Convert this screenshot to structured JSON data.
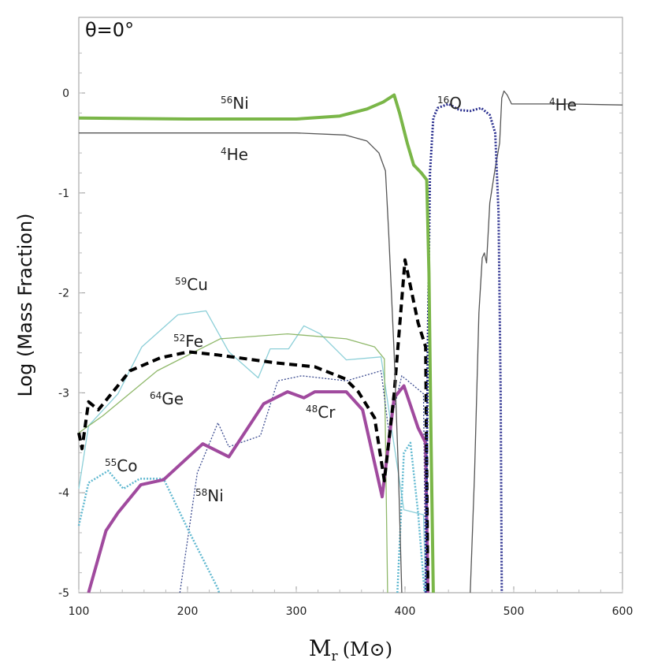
{
  "chart_data": {
    "type": "line",
    "title": "θ=0°",
    "xlabel": "M_r (M_⊙)",
    "xlabel_main": "M",
    "xlabel_sub": "r",
    "xlabel_unit": "(M⊙)",
    "ylabel": "Log (Mass Fraction)",
    "xlim": [
      100,
      600
    ],
    "ylim": [
      -5,
      0.5
    ],
    "xticks": [
      100,
      200,
      300,
      400,
      500,
      600
    ],
    "yticks": [
      0,
      -1,
      -2,
      -3,
      -4,
      -5
    ],
    "grid": false,
    "series": [
      {
        "name": "56Ni",
        "mass": "56",
        "el": "Ni",
        "color": "#7ab648",
        "width": 4,
        "dash": "",
        "points": [
          [
            100,
            -0.25
          ],
          [
            200,
            -0.26
          ],
          [
            300,
            -0.26
          ],
          [
            340,
            -0.23
          ],
          [
            365,
            -0.16
          ],
          [
            380,
            -0.09
          ],
          [
            390,
            -0.02
          ],
          [
            395,
            -0.2
          ],
          [
            402,
            -0.5
          ],
          [
            408,
            -0.72
          ],
          [
            415,
            -0.8
          ],
          [
            420,
            -0.87
          ],
          [
            422,
            -1.8
          ],
          [
            424,
            -3.5
          ],
          [
            426,
            -5
          ]
        ]
      },
      {
        "name": "4He",
        "mass": "4",
        "el": "He",
        "color": "#555555",
        "width": 1.3,
        "dash": "",
        "points": [
          [
            100,
            -0.4
          ],
          [
            300,
            -0.4
          ],
          [
            345,
            -0.42
          ],
          [
            365,
            -0.48
          ],
          [
            376,
            -0.6
          ],
          [
            382,
            -0.78
          ],
          [
            385,
            -1.4
          ],
          [
            390,
            -2.6
          ],
          [
            394,
            -3.8
          ],
          [
            397,
            -5
          ],
          null,
          [
            460,
            -5
          ],
          [
            464,
            -3.8
          ],
          [
            468,
            -2.2
          ],
          [
            471,
            -1.65
          ],
          [
            473,
            -1.6
          ],
          [
            475,
            -1.7
          ],
          [
            478,
            -1.1
          ],
          [
            483,
            -0.75
          ],
          [
            487,
            -0.5
          ],
          [
            489,
            -0.05
          ],
          [
            491,
            0.02
          ],
          [
            494,
            -0.02
          ],
          [
            498,
            -0.11
          ],
          [
            550,
            -0.11
          ],
          [
            600,
            -0.12
          ]
        ]
      },
      {
        "name": "16O",
        "mass": "16",
        "el": "O",
        "color": "#2a2f8f",
        "width": 3,
        "dash": "2,2",
        "points": [
          [
            419,
            -5
          ],
          [
            421,
            -2.5
          ],
          [
            423,
            -0.8
          ],
          [
            426,
            -0.25
          ],
          [
            430,
            -0.15
          ],
          [
            440,
            -0.11
          ],
          [
            450,
            -0.17
          ],
          [
            460,
            -0.18
          ],
          [
            470,
            -0.15
          ],
          [
            478,
            -0.22
          ],
          [
            483,
            -0.4
          ],
          [
            486,
            -1.2
          ],
          [
            488,
            -3
          ],
          [
            489,
            -5
          ]
        ]
      },
      {
        "name": "52Fe",
        "mass": "52",
        "el": "Fe",
        "color": "#000000",
        "width": 4,
        "dash": "10,6",
        "points": [
          [
            100,
            -3.4
          ],
          [
            103,
            -3.56
          ],
          [
            109,
            -3.09
          ],
          [
            118,
            -3.17
          ],
          [
            147,
            -2.78
          ],
          [
            175,
            -2.65
          ],
          [
            201,
            -2.59
          ],
          [
            227,
            -2.62
          ],
          [
            281,
            -2.7
          ],
          [
            317,
            -2.74
          ],
          [
            345,
            -2.86
          ],
          [
            357,
            -2.99
          ],
          [
            372,
            -3.25
          ],
          [
            381,
            -3.88
          ],
          [
            390,
            -3.01
          ],
          [
            400,
            -1.67
          ],
          [
            412,
            -2.3
          ],
          [
            419,
            -2.54
          ],
          [
            421,
            -5
          ]
        ]
      },
      {
        "name": "48Cr",
        "mass": "48",
        "el": "Cr",
        "color": "#a04a9e",
        "width": 4,
        "dash": "",
        "points": [
          [
            109,
            -5
          ],
          [
            125,
            -4.38
          ],
          [
            136,
            -4.2
          ],
          [
            157,
            -3.92
          ],
          [
            178,
            -3.87
          ],
          [
            214,
            -3.51
          ],
          [
            238,
            -3.64
          ],
          [
            270,
            -3.11
          ],
          [
            292,
            -2.99
          ],
          [
            307,
            -3.05
          ],
          [
            317,
            -2.99
          ],
          [
            346,
            -2.99
          ],
          [
            361,
            -3.17
          ],
          [
            379,
            -4.04
          ],
          [
            390,
            -3.05
          ],
          [
            399,
            -2.93
          ],
          [
            412,
            -3.35
          ],
          [
            419,
            -3.5
          ],
          [
            421,
            -5
          ]
        ]
      },
      {
        "name": "64Ge",
        "mass": "64",
        "el": "Ge",
        "color": "#8fb86a",
        "width": 1.3,
        "dash": "",
        "points": [
          [
            100,
            -3.4
          ],
          [
            122,
            -3.23
          ],
          [
            172,
            -2.78
          ],
          [
            230,
            -2.46
          ],
          [
            292,
            -2.41
          ],
          [
            346,
            -2.46
          ],
          [
            372,
            -2.54
          ],
          [
            381,
            -2.66
          ],
          [
            384,
            -5
          ]
        ]
      },
      {
        "name": "59Cu",
        "mass": "59",
        "el": "Cu",
        "color": "#8ccfd8",
        "width": 1.3,
        "dash": "",
        "points": [
          [
            100,
            -3.96
          ],
          [
            109,
            -3.33
          ],
          [
            136,
            -3.01
          ],
          [
            158,
            -2.54
          ],
          [
            191,
            -2.22
          ],
          [
            217,
            -2.18
          ],
          [
            238,
            -2.59
          ],
          [
            265,
            -2.85
          ],
          [
            276,
            -2.56
          ],
          [
            293,
            -2.56
          ],
          [
            307,
            -2.33
          ],
          [
            322,
            -2.41
          ],
          [
            346,
            -2.67
          ],
          [
            378,
            -2.64
          ],
          [
            388,
            -3.38
          ],
          [
            399,
            -4.17
          ],
          [
            417,
            -4.22
          ],
          [
            419,
            -5
          ]
        ]
      },
      {
        "name": "55Co",
        "mass": "55",
        "el": "Co",
        "color": "#5fb8d0",
        "width": 2.5,
        "dash": "2,2",
        "points": [
          [
            100,
            -4.33
          ],
          [
            109,
            -3.9
          ],
          [
            127,
            -3.78
          ],
          [
            141,
            -3.96
          ],
          [
            156,
            -3.86
          ],
          [
            178,
            -3.86
          ],
          [
            201,
            -4.38
          ],
          [
            228,
            -4.96
          ],
          [
            229,
            -5
          ],
          null,
          [
            393,
            -5
          ],
          [
            399,
            -3.6
          ],
          [
            405,
            -3.5
          ],
          [
            412,
            -4.2
          ],
          [
            418,
            -5
          ]
        ]
      },
      {
        "name": "58Ni",
        "mass": "58",
        "el": "Ni",
        "color": "#3a4a8f",
        "width": 1.3,
        "dash": "2,2",
        "points": [
          [
            193,
            -5
          ],
          [
            209,
            -3.8
          ],
          [
            228,
            -3.3
          ],
          [
            238,
            -3.54
          ],
          [
            267,
            -3.43
          ],
          [
            283,
            -2.88
          ],
          [
            305,
            -2.83
          ],
          [
            346,
            -2.88
          ],
          [
            378,
            -2.78
          ],
          [
            385,
            -3.38
          ],
          [
            397,
            -2.83
          ],
          [
            417,
            -3.01
          ],
          [
            419,
            -5
          ]
        ]
      }
    ],
    "annotations": [
      {
        "series": "56Ni",
        "mass": "56",
        "el": "Ni"
      },
      {
        "series": "4He",
        "mass": "4",
        "el": "He"
      },
      {
        "series": "16O",
        "mass": "16",
        "el": "O"
      },
      {
        "series": "4He-outer",
        "mass": "4",
        "el": "He"
      },
      {
        "series": "59Cu",
        "mass": "59",
        "el": "Cu"
      },
      {
        "series": "52Fe",
        "mass": "52",
        "el": "Fe"
      },
      {
        "series": "64Ge",
        "mass": "64",
        "el": "Ge"
      },
      {
        "series": "48Cr",
        "mass": "48",
        "el": "Cr"
      },
      {
        "series": "55Co",
        "mass": "55",
        "el": "Co"
      },
      {
        "series": "58Ni",
        "mass": "58",
        "el": "Ni"
      }
    ]
  }
}
